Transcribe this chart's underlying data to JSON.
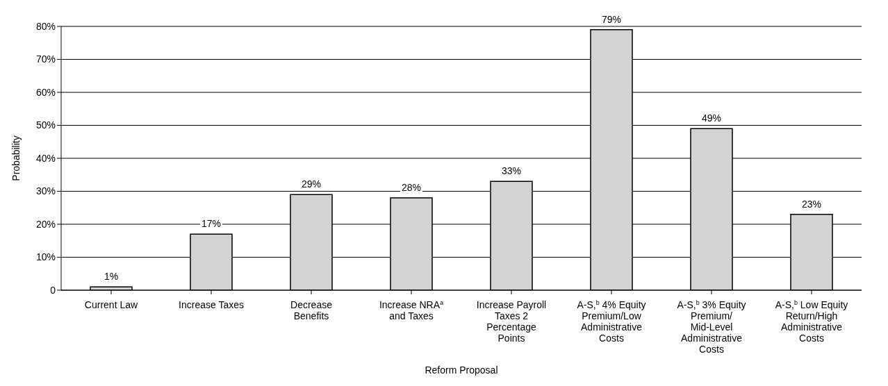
{
  "chart_data": {
    "type": "bar",
    "xlabel": "Reform Proposal",
    "ylabel": "Probability",
    "categories": [
      "Current Law",
      "Increase Taxes",
      "Decrease Benefits",
      "Increase NRA$^{a}$ and Taxes",
      "Increase Payroll Taxes 2 Percentage Points",
      "A-S,$^{b}$ 4% Equity Premium/Low Administrative Costs",
      "A-S,$^{b}$ 3% Equity Premium/ Mid-Level Administrative Costs",
      "A-S,$^{b}$ Low Equity Return/High Administrative Costs"
    ],
    "values": [
      1,
      17,
      29,
      28,
      33,
      79,
      49,
      23
    ],
    "value_labels": [
      "1%",
      "17%",
      "29%",
      "28%",
      "33%",
      "79%",
      "49%",
      "23%"
    ],
    "color": "#d3d3d3",
    "ylim": [
      0,
      80
    ],
    "yticks": [
      {
        "value": 0,
        "label": "0"
      },
      {
        "value": 10,
        "label": "10%"
      },
      {
        "value": 20,
        "label": "20%"
      },
      {
        "value": 30,
        "label": "30%"
      },
      {
        "value": 40,
        "label": "40%"
      },
      {
        "value": 50,
        "label": "50%"
      },
      {
        "value": 60,
        "label": "60%"
      },
      {
        "value": 70,
        "label": "70%"
      },
      {
        "value": 80,
        "label": "80%"
      }
    ],
    "grid": "y"
  }
}
